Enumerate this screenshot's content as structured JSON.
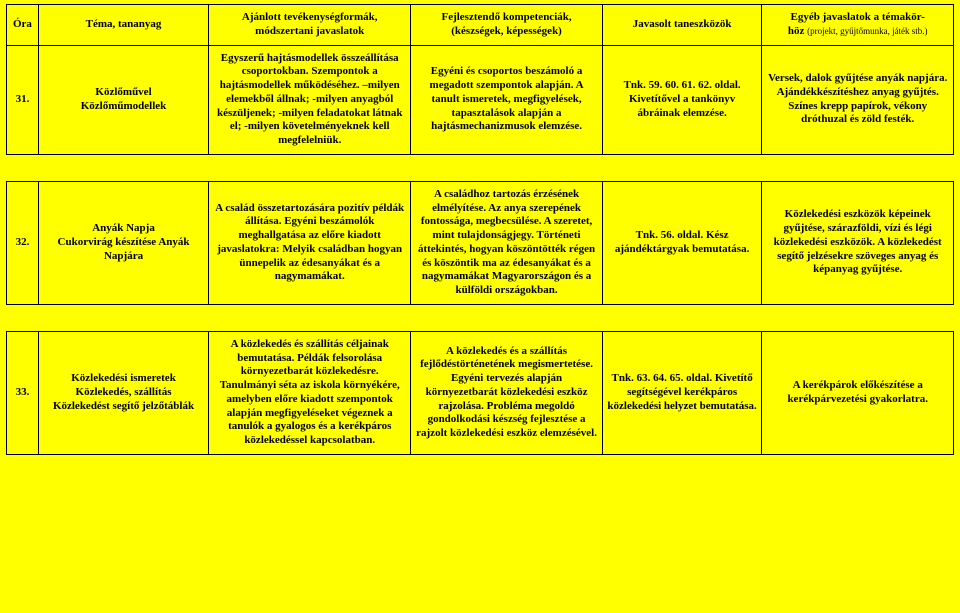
{
  "header": {
    "ora": "Óra",
    "tema": "Téma, tananyag",
    "tevekenyseg_l1": "Ajánlott tevékenységformák,",
    "tevekenyseg_l2": "módszertani javaslatok",
    "kompetencia_l1": "Fejlesztendő kompetenciák,",
    "kompetencia_l2": "(készségek, képességek)",
    "eszkozok": "Javasolt taneszközök",
    "egyeb_l1": "Egyéb javaslatok a témakör-",
    "egyeb_l2": "höz ",
    "egyeb_sub": "(projekt, gyűjtőmunka, játék stb.)"
  },
  "rows": [
    {
      "ora": "31.",
      "tema": "Közlőművel\nKözlőműmodellek",
      "tev": "Egyszerű hajtásmodellek összeállítása csoportokban. Szempontok a hajtásmodellek működéséhez. –milyen elemekből állnak; -milyen anyagból készüljenek; -milyen feladatokat látnak el; -milyen követelményeknek kell megfelelniük.",
      "komp": "Egyéni és csoportos beszámoló a megadott szempontok alapján. A tanult ismeretek, megfigyelések, tapasztalások alapján a hajtásmechanizmusok elemzése.",
      "esz": "Tnk. 59. 60. 61. 62. oldal. Kivetítővel a tankönyv ábráinak elemzése.",
      "egyeb": "Versek, dalok gyűjtése anyák napjára. Ajándékkészítéshez anyag gyűjtés. Színes krepp papírok, vékony dróthuzal és zöld festék."
    },
    {
      "ora": "32.",
      "tema": "Anyák Napja\nCukorvirág készítése Anyák Napjára",
      "tev": "A család összetartozására pozitív példák állítása. Egyéni beszámolók meghallgatása az előre kiadott javaslatokra: Melyik családban hogyan ünnepelik az édesanyákat és a nagymamákat.",
      "komp": "A családhoz tartozás érzésének elmélyítése. Az anya szerepének fontossága, megbecsülése. A szeretet, mint tulajdonságjegy. Történeti áttekintés, hogyan köszöntötték régen és köszöntik ma az édesanyákat és a nagymamákat Magyarországon és a külföldi országokban.",
      "esz": "Tnk.  56. oldal. Kész ajándéktárgyak bemutatása.",
      "egyeb": "Közlekedési eszközök képeinek gyűjtése, szárazföldi, vízi és légi közlekedési eszközök. A közlekedést segítő jelzésekre szöveges anyag és képanyag gyűjtése."
    },
    {
      "ora": "33.",
      "tema": "Közlekedési ismeretek\nKözlekedés, szállítás\nKözlekedést segítő jelzőtáblák",
      "tev": "A közlekedés és szállítás céljainak bemutatása. Példák felsorolása környezetbarát közlekedésre. Tanulmányi séta az iskola környékére, amelyben előre kiadott szempontok alapján megfigyeléseket végeznek a tanulók a gyalogos és a kerékpáros közlekedéssel kapcsolatban.",
      "komp": "A közlekedés és a szállítás fejlődéstörténetének megismertetése. Egyéni tervezés alapján környezetbarát közlekedési eszköz rajzolása. Probléma megoldó gondolkodási készség fejlesztése a rajzolt közlekedési eszköz elemzésével.",
      "esz": "Tnk. 63. 64. 65. oldal. Kivetítő segítségével kerékpáros közlekedési helyzet bemutatása.",
      "egyeb": "A kerékpárok előkészítése a kerékpárvezetési gyakorlatra."
    }
  ]
}
